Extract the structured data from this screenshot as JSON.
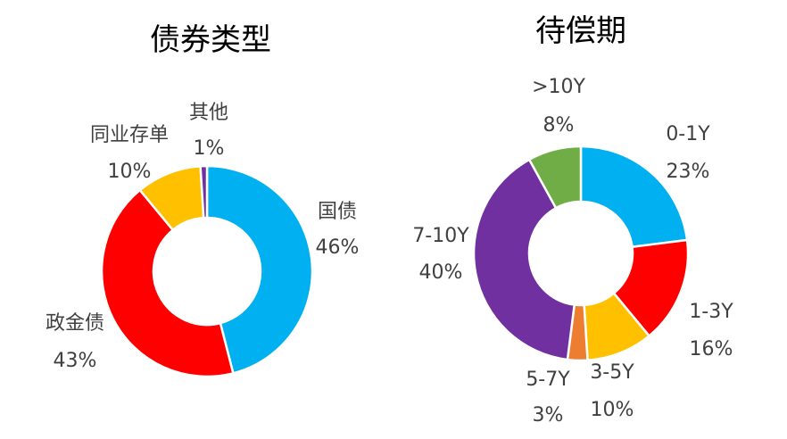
{
  "chart_data": [
    {
      "type": "pie",
      "variant": "donut",
      "title": "债券类型",
      "slices": [
        {
          "name": "国债",
          "value": 46,
          "value_label": "46%",
          "color": "#00B0F0"
        },
        {
          "name": "政金债",
          "value": 43,
          "value_label": "43%",
          "color": "#FF0000"
        },
        {
          "name": "同业存单",
          "value": 10,
          "value_label": "10%",
          "color": "#FFC000"
        },
        {
          "name": "其他",
          "value": 1,
          "value_label": "1%",
          "color": "#7030A0"
        }
      ]
    },
    {
      "type": "pie",
      "variant": "donut",
      "title": "待偿期",
      "slices": [
        {
          "name": "0-1Y",
          "value": 23,
          "value_label": "23%",
          "color": "#00B0F0"
        },
        {
          "name": "1-3Y",
          "value": 16,
          "value_label": "16%",
          "color": "#FF0000"
        },
        {
          "name": "3-5Y",
          "value": 10,
          "value_label": "10%",
          "color": "#FFC000"
        },
        {
          "name": "5-7Y",
          "value": 3,
          "value_label": "3%",
          "color": "#ED7D31"
        },
        {
          "name": "7-10Y",
          "value": 40,
          "value_label": "40%",
          "color": "#7030A0"
        },
        {
          "name": ">10Y",
          "value": 8,
          "value_label": "8%",
          "color": "#70AD47"
        }
      ]
    }
  ]
}
